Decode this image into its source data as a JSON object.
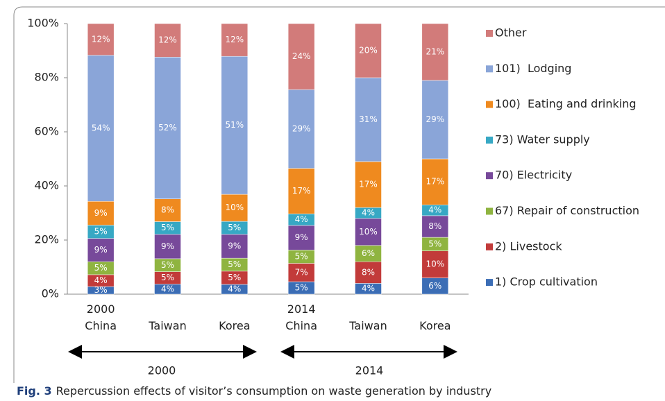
{
  "chart_data": {
    "type": "stacked_bar",
    "categories": [
      "2000\nChina",
      "Taiwan",
      "Korea",
      "2014\nChina",
      "Taiwan",
      "Korea"
    ],
    "group_labels": [
      "2000",
      "2014"
    ],
    "ylim": [
      0,
      100
    ],
    "yticks": [
      {
        "value": 0,
        "label": "0%"
      },
      {
        "value": 20,
        "label": "20%"
      },
      {
        "value": 40,
        "label": "40%"
      },
      {
        "value": 60,
        "label": "60%"
      },
      {
        "value": 80,
        "label": "80%"
      },
      {
        "value": 100,
        "label": "100%"
      }
    ],
    "grid": false,
    "legend": "right",
    "series": [
      {
        "name": "1) Crop cultivation",
        "color": "#3b6db5",
        "values": [
          2.8,
          3.7,
          3.6,
          4.6,
          4,
          6
        ],
        "value_labels": [
          "3%",
          "4%",
          "4%",
          "5%",
          "4%",
          "6%"
        ]
      },
      {
        "name": "2) Livestock",
        "color": "#c23b3a",
        "values": [
          4.4,
          4.6,
          4.9,
          6.8,
          8,
          10
        ],
        "value_labels": [
          "4%",
          "5%",
          "5%",
          "7%",
          "8%",
          "10%"
        ]
      },
      {
        "name": "67) Repair of construction",
        "color": "#8fb440",
        "values": [
          4.8,
          4.8,
          4.8,
          4.9,
          6,
          5
        ],
        "value_labels": [
          "5%",
          "5%",
          "5%",
          "5%",
          "6%",
          "5%"
        ]
      },
      {
        "name": "70) Electricity",
        "color": "#77499a",
        "values": [
          8.6,
          9.0,
          8.8,
          9.1,
          10,
          8
        ],
        "value_labels": [
          "9%",
          "9%",
          "9%",
          "9%",
          "10%",
          "8%"
        ]
      },
      {
        "name": "73) Water supply",
        "color": "#37a8c4",
        "values": [
          4.9,
          4.7,
          4.8,
          4.3,
          4,
          4
        ],
        "value_labels": [
          "5%",
          "5%",
          "5%",
          "4%",
          "4%",
          "4%"
        ]
      },
      {
        "name": "100)  Eating and drinking",
        "color": "#ef8a1f",
        "values": [
          8.8,
          8.4,
          10.0,
          16.8,
          17,
          17
        ],
        "value_labels": [
          "9%",
          "8%",
          "10%",
          "17%",
          "17%",
          "17%"
        ]
      },
      {
        "name": "101)  Lodging",
        "color": "#8aa5d8",
        "values": [
          54.0,
          52.4,
          51.0,
          29.1,
          31,
          29
        ],
        "value_labels": [
          "54%",
          "52%",
          "51%",
          "29%",
          "31%",
          "29%"
        ]
      },
      {
        "name": "Other",
        "color": "#d27b7a",
        "values": [
          11.7,
          12.4,
          12.1,
          24.4,
          20,
          21
        ],
        "value_labels": [
          "12%",
          "12%",
          "12%",
          "24%",
          "20%",
          "21%"
        ]
      }
    ]
  },
  "caption": {
    "label": "Fig. 3",
    "text": "Repercussion effects of visitor’s consumption on waste generation by industry"
  }
}
